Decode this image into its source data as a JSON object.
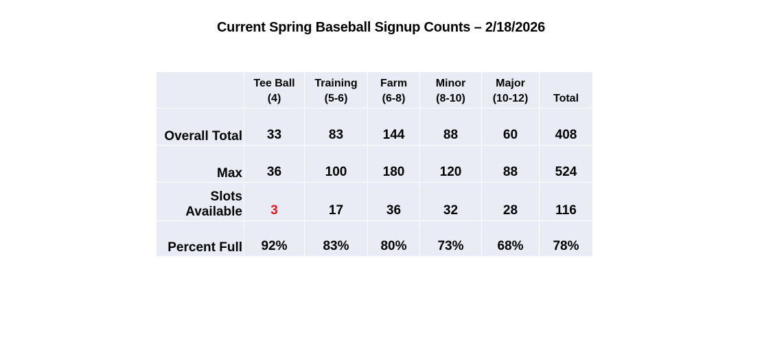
{
  "title": "Current Spring Baseball Signup Counts – 2/18/2026",
  "columns": [
    {
      "name": "Tee Ball",
      "ages": "(4)"
    },
    {
      "name": "Training",
      "ages": "(5-6)"
    },
    {
      "name": "Farm",
      "ages": "(6-8)"
    },
    {
      "name": "Minor",
      "ages": "(8-10)"
    },
    {
      "name": "Major",
      "ages": "(10-12)"
    },
    {
      "name": "Total",
      "ages": ""
    }
  ],
  "rows": [
    {
      "label": "Overall Total",
      "values": [
        "33",
        "83",
        "144",
        "88",
        "60",
        "408"
      ]
    },
    {
      "label": "Max",
      "values": [
        "36",
        "100",
        "180",
        "120",
        "88",
        "524"
      ]
    },
    {
      "label": "Slots Available",
      "values": [
        "3",
        "17",
        "36",
        "32",
        "28",
        "116"
      ]
    },
    {
      "label": "Percent Full",
      "values": [
        "92%",
        "83%",
        "80%",
        "73%",
        "68%",
        "78%"
      ]
    }
  ],
  "colors": {
    "table_background": "#e9ebf5",
    "alert_value": "#e8151b",
    "text": "#000000"
  }
}
